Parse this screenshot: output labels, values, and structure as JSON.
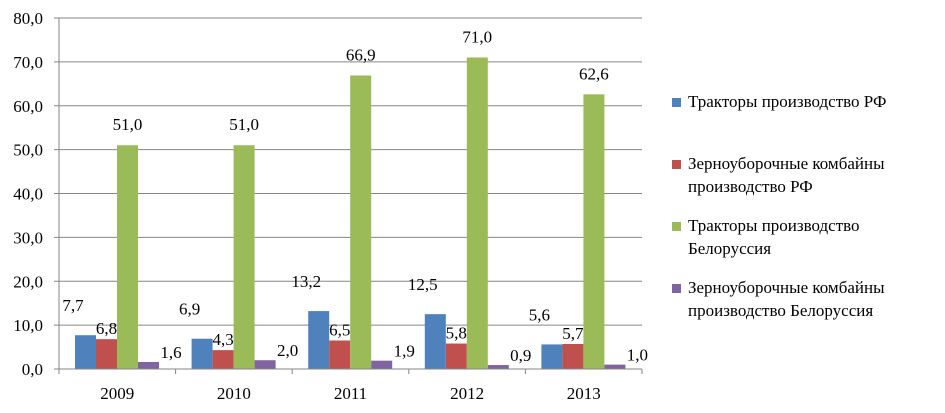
{
  "chart_data": {
    "type": "bar",
    "categories": [
      "2009",
      "2010",
      "2011",
      "2012",
      "2013"
    ],
    "series": [
      {
        "name": "Тракторы  производство РФ",
        "values": [
          7.7,
          6.9,
          13.2,
          12.5,
          5.6
        ],
        "labels": [
          "7,7",
          "6,9",
          "13,2",
          "12,5",
          "5,6"
        ],
        "color": "#4F81BD"
      },
      {
        "name": "Зерноуборочные комбайны производство РФ",
        "values": [
          6.8,
          4.3,
          6.5,
          5.8,
          5.7
        ],
        "labels": [
          "6,8",
          "4,3",
          "6,5",
          "5,8",
          "5,7"
        ],
        "color": "#C0504D"
      },
      {
        "name": "Тракторы производство Белоруссия",
        "values": [
          51.0,
          51.0,
          66.9,
          71.0,
          62.6
        ],
        "labels": [
          "51,0",
          "51,0",
          "66,9",
          "71,0",
          "62,6"
        ],
        "color": "#9BBB59"
      },
      {
        "name": "Зерноуборочные комбайны производство Белоруссия",
        "values": [
          1.6,
          2.0,
          1.9,
          0.9,
          1.0
        ],
        "labels": [
          "1,6",
          "2,0",
          "1,9",
          "0,9",
          "1,0"
        ],
        "color": "#8064A2"
      }
    ],
    "ylim": [
      0,
      80
    ],
    "yticks": [
      "0,0",
      "10,0",
      "20,0",
      "30,0",
      "40,0",
      "50,0",
      "60,0",
      "70,0",
      "80,0"
    ],
    "grid": true,
    "legend_position": "right",
    "title": "",
    "xlabel": "",
    "ylabel": ""
  }
}
